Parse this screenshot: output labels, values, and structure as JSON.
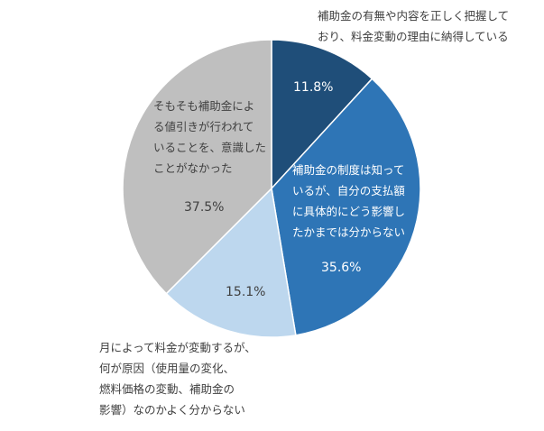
{
  "chart_data": {
    "type": "pie",
    "start": "top",
    "direction": "clockwise",
    "slices": [
      {
        "label": "補助金の有無や内容を正しく把握して\nおり、料金変動の理由に納得している",
        "value": 11.8,
        "value_label": "11.8%",
        "color": "#1F4E79"
      },
      {
        "label": "補助金の制度は知って\nいるが、自分の支払額\nに具体的にどう影響し\nたかまでは分からない",
        "value": 35.6,
        "value_label": "35.6%",
        "color": "#2E75B6"
      },
      {
        "label": "月によって料金が変動するが、\n何が原因（使用量の変化、\n燃料価格の変動、補助金の\n影響）なのかよく分からない",
        "value": 15.1,
        "value_label": "15.1%",
        "color": "#BDD7EE"
      },
      {
        "label": "そもそも補助金によ\nる値引きが行われて\nいることを、意識した\nことがなかった",
        "value": 37.5,
        "value_label": "37.5%",
        "color": "#BFBFBF"
      }
    ]
  }
}
